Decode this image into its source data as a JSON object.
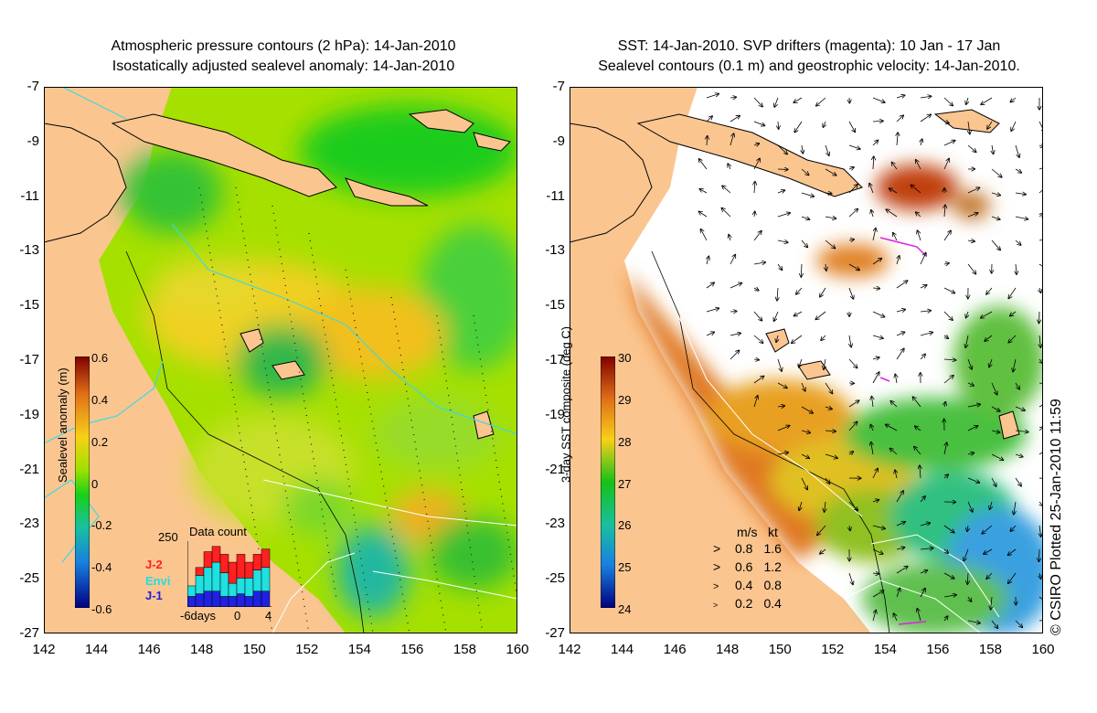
{
  "left_panel": {
    "title_line1": "Atmospheric pressure contours (2 hPa): 14-Jan-2010",
    "title_line2": "Isostatically adjusted sealevel anomaly: 14-Jan-2010",
    "colorbar": {
      "label": "Sealevel anomaly (m)",
      "ticks": [
        "0.6",
        "0.4",
        "0.2",
        "0",
        "-0.2",
        "-0.4",
        "-0.6"
      ],
      "range": [
        -0.6,
        0.6
      ]
    },
    "inset": {
      "title": "Data count",
      "ymax_label": "250",
      "x_labels": [
        "-6days",
        "0",
        "4"
      ],
      "legend": [
        {
          "label": "J-2",
          "color": "#ff2020"
        },
        {
          "label": "Envi",
          "color": "#20e0e0"
        },
        {
          "label": "J-1",
          "color": "#2020e0"
        }
      ],
      "bars": [
        {
          "j1": 40,
          "envi": 40,
          "j2": 0
        },
        {
          "j1": 50,
          "envi": 70,
          "j2": 30
        },
        {
          "j1": 60,
          "envi": 90,
          "j2": 60
        },
        {
          "j1": 60,
          "envi": 110,
          "j2": 60
        },
        {
          "j1": 40,
          "envi": 90,
          "j2": 70
        },
        {
          "j1": 40,
          "envi": 50,
          "j2": 80
        },
        {
          "j1": 50,
          "envi": 60,
          "j2": 90
        },
        {
          "j1": 40,
          "envi": 70,
          "j2": 60
        },
        {
          "j1": 60,
          "envi": 80,
          "j2": 60
        },
        {
          "j1": 60,
          "envi": 90,
          "j2": 70
        }
      ]
    }
  },
  "right_panel": {
    "title_line1": "SST: 14-Jan-2010. SVP drifters (magenta): 10 Jan - 17 Jan",
    "title_line2": "Sealevel contours (0.1 m) and geostrophic velocity: 14-Jan-2010.",
    "colorbar": {
      "label": "3-day SST composite (deg C)",
      "ticks": [
        "30",
        "29",
        "28",
        "27",
        "26",
        "25",
        "24"
      ],
      "range": [
        24,
        30
      ]
    },
    "velocity_key": {
      "header_ms": "m/s",
      "header_kt": "kt",
      "rows": [
        {
          "ms": "0.8",
          "kt": "1.6"
        },
        {
          "ms": "0.6",
          "kt": "1.2"
        },
        {
          "ms": "0.4",
          "kt": "0.8"
        },
        {
          "ms": "0.2",
          "kt": "0.4"
        }
      ]
    }
  },
  "axes": {
    "x_ticks": [
      "142",
      "144",
      "146",
      "148",
      "150",
      "152",
      "154",
      "156",
      "158",
      "160"
    ],
    "y_ticks": [
      "-7",
      "-9",
      "-11",
      "-13",
      "-15",
      "-17",
      "-19",
      "-21",
      "-23",
      "-25",
      "-27"
    ],
    "lon_range": [
      142,
      160
    ],
    "lat_range": [
      -27,
      -7
    ]
  },
  "credit": "© CSIRO Plotted 25-Jan-2010 11:59",
  "colors": {
    "land": "#fbc590",
    "sea_background_right": "#ffffff",
    "drifter": "#e020e0"
  }
}
